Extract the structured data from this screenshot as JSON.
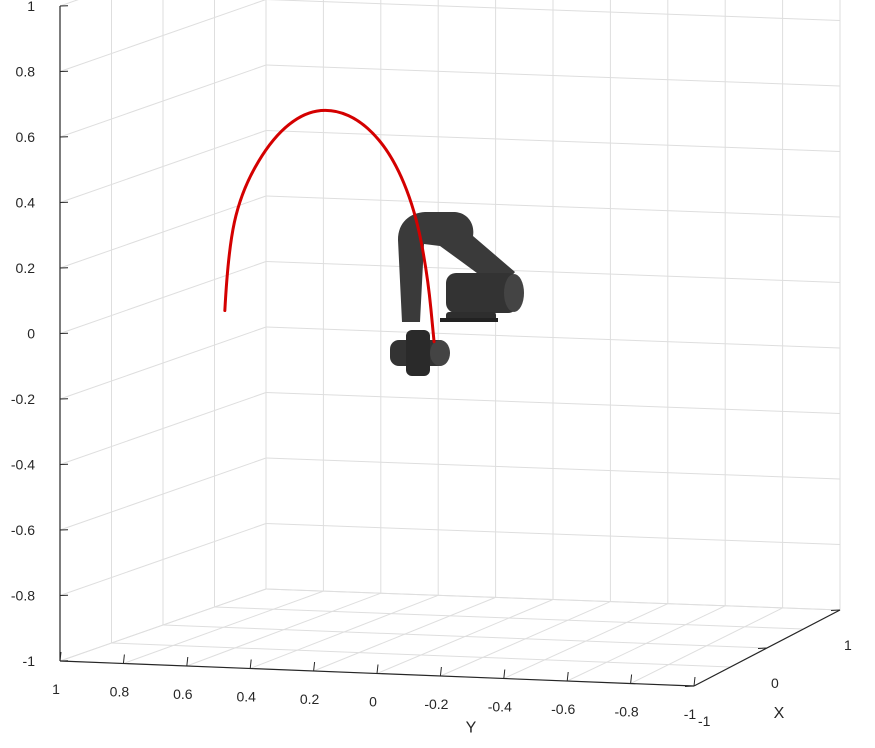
{
  "chart_data": {
    "type": "line",
    "view": "3d",
    "title": "",
    "xlabel": "X",
    "ylabel": "Y",
    "zlabel": "",
    "xlim": [
      -1,
      1
    ],
    "ylim": [
      -1,
      1
    ],
    "zlim": [
      -1,
      1
    ],
    "grid": true,
    "z_ticks": [
      "1",
      "0.8",
      "0.6",
      "0.4",
      "0.2",
      "0",
      "-0.2",
      "-0.4",
      "-0.6",
      "-0.8",
      "-1"
    ],
    "y_ticks": [
      "1",
      "0.8",
      "0.6",
      "0.4",
      "0.2",
      "0",
      "-0.2",
      "-0.4",
      "-0.6",
      "-0.8",
      "-1"
    ],
    "x_ticks": [
      "-1",
      "0",
      "1"
    ],
    "series": [
      {
        "color": "#d40000",
        "points": [
          {
            "y": 0.48,
            "z": 0.09
          },
          {
            "y": 0.47,
            "z": 0.27
          },
          {
            "y": 0.43,
            "z": 0.45
          },
          {
            "y": 0.34,
            "z": 0.61
          },
          {
            "y": 0.24,
            "z": 0.7
          },
          {
            "y": 0.14,
            "z": 0.72
          },
          {
            "y": 0.04,
            "z": 0.68
          },
          {
            "y": -0.05,
            "z": 0.58
          },
          {
            "y": -0.12,
            "z": 0.42
          },
          {
            "y": -0.16,
            "z": 0.22
          },
          {
            "y": -0.18,
            "z": 0.02
          }
        ]
      }
    ],
    "robot_color": "#3a3a3a"
  }
}
